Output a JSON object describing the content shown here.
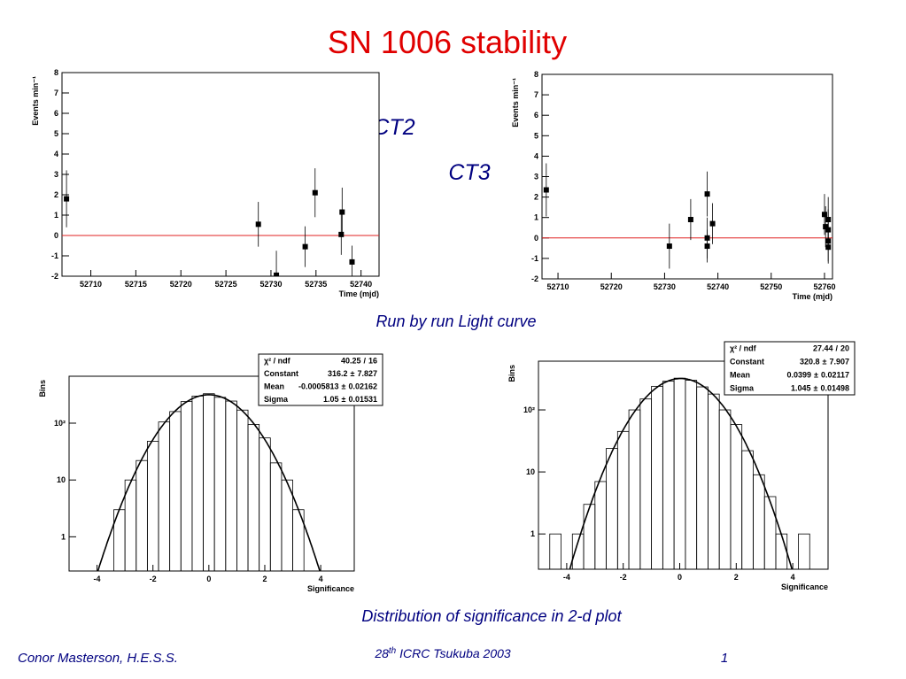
{
  "title": "SN 1006 stability",
  "labels": {
    "ct2": "CT2",
    "ct3": "CT3",
    "light_curve": "Run by run Light curve",
    "distribution": "Distribution of significance in 2-d plot"
  },
  "footer": {
    "author": "Conor Masterson, H.E.S.S.",
    "conference_number": "28",
    "conference_suffix": "th",
    "conference_rest": " ICRC Tsukuba 2003",
    "page_number": 1
  },
  "chart_data": [
    {
      "type": "scatter",
      "ylabel": "Events min⁻¹",
      "xlabel": "Time (mjd)",
      "x": [
        52707.3,
        52728.6,
        52730.6,
        52733.8,
        52734.9,
        52737.9,
        52737.8,
        52739
      ],
      "values": [
        1.8,
        0.55,
        -1.95,
        -0.55,
        2.1,
        1.15,
        0.05,
        -1.3
      ],
      "errors": [
        1.4,
        1.1,
        1.2,
        1.0,
        1.2,
        1.2,
        1.0,
        0.8
      ],
      "xlim": [
        52706.8,
        52742
      ],
      "ylim": [
        -2,
        8
      ],
      "xticks": [
        52710,
        52715,
        52720,
        52725,
        52730,
        52735,
        52740
      ],
      "yticks": [
        -2,
        -1,
        0,
        1,
        2,
        3,
        4,
        5,
        6,
        7,
        8
      ],
      "color": "#000000",
      "reference_line": {
        "value": 0,
        "color": "#e02020"
      }
    },
    {
      "type": "scatter",
      "ylabel": "Events min⁻¹",
      "xlabel": "Time (mjd)",
      "x": [
        52707.8,
        52730.9,
        52734.9,
        52738,
        52738,
        52738,
        52739,
        52760,
        52760.2,
        52760.7,
        52760.7,
        52760.7,
        52760.7
      ],
      "values": [
        2.35,
        -0.4,
        0.9,
        2.15,
        0.0,
        -0.4,
        0.7,
        1.15,
        0.55,
        0.9,
        0.4,
        -0.15,
        -0.45
      ],
      "errors": [
        1.3,
        1.1,
        1.0,
        1.1,
        1.0,
        0.8,
        1.0,
        1.0,
        1.0,
        1.1,
        1.0,
        1.0,
        0.8
      ],
      "xlim": [
        52707,
        52761.5
      ],
      "ylim": [
        -2,
        8
      ],
      "xticks": [
        52710,
        52720,
        52730,
        52740,
        52750,
        52760
      ],
      "yticks": [
        -2,
        -1,
        0,
        1,
        2,
        3,
        4,
        5,
        6,
        7,
        8
      ],
      "color": "#000000",
      "reference_line": {
        "value": 0,
        "color": "#e02020"
      }
    },
    {
      "type": "histogram",
      "ylabel": "Bins",
      "xlabel": "Significance",
      "log_y": true,
      "bins": [
        -5,
        -4.6,
        -4.2,
        -3.8,
        -3.4,
        -3,
        -2.6,
        -2.2,
        -1.8,
        -1.4,
        -1,
        -0.6,
        -0.2,
        0.2,
        0.6,
        1,
        1.4,
        1.8,
        2.2,
        2.6,
        3,
        3.4,
        3.8,
        4.2,
        4.6,
        5
      ],
      "counts": [
        0,
        0,
        0,
        0,
        3,
        10,
        22,
        48,
        105,
        160,
        240,
        300,
        330,
        285,
        245,
        170,
        95,
        55,
        20,
        10,
        3,
        0,
        0,
        0,
        0
      ],
      "xlim": [
        -5,
        5.2
      ],
      "ylim": [
        0.25,
        670
      ],
      "xticks": [
        -4,
        -2,
        0,
        2,
        4
      ],
      "yticks": [
        1,
        10,
        {
          "value": 100,
          "label": "10²"
        }
      ],
      "color": "#000000",
      "fit_color": "#000000",
      "stats": [
        {
          "name": "χ² / ndf",
          "value": 40.25,
          "separator": "/",
          "error": 16
        },
        {
          "name": "Constant",
          "value": 316.2,
          "separator": "±",
          "error": 7.827
        },
        {
          "name": "Mean",
          "value": -0.0005813,
          "separator": "±",
          "error": 0.02162
        },
        {
          "name": "Sigma",
          "value": 1.05,
          "separator": "±",
          "error": 0.01531
        }
      ]
    },
    {
      "type": "histogram",
      "ylabel": "Bins",
      "xlabel": "Significance",
      "log_y": true,
      "bins": [
        -5,
        -4.6,
        -4.2,
        -3.8,
        -3.4,
        -3,
        -2.6,
        -2.2,
        -1.8,
        -1.4,
        -1,
        -0.6,
        -0.2,
        0.2,
        0.6,
        1,
        1.4,
        1.8,
        2.2,
        2.6,
        3,
        3.4,
        3.8,
        4.2,
        4.6,
        5
      ],
      "counts": [
        0,
        1,
        0,
        1,
        3,
        7,
        24,
        45,
        100,
        150,
        240,
        290,
        325,
        300,
        235,
        180,
        100,
        58,
        22,
        9,
        4,
        1,
        0,
        1,
        0
      ],
      "xlim": [
        -5,
        5.25
      ],
      "ylim": [
        0.27,
        610
      ],
      "xticks": [
        -4,
        -2,
        0,
        2,
        4
      ],
      "yticks": [
        1,
        10,
        {
          "value": 100,
          "label": "10²"
        }
      ],
      "color": "#000000",
      "fit_color": "#000000",
      "stats": [
        {
          "name": "χ² / ndf",
          "value": 27.44,
          "separator": "/",
          "error": 20
        },
        {
          "name": "Constant",
          "value": 320.8,
          "separator": "±",
          "error": 7.907
        },
        {
          "name": "Mean",
          "value": 0.0399,
          "separator": "±",
          "error": 0.02117
        },
        {
          "name": "Sigma",
          "value": 1.045,
          "separator": "±",
          "error": 0.01498
        }
      ]
    }
  ]
}
